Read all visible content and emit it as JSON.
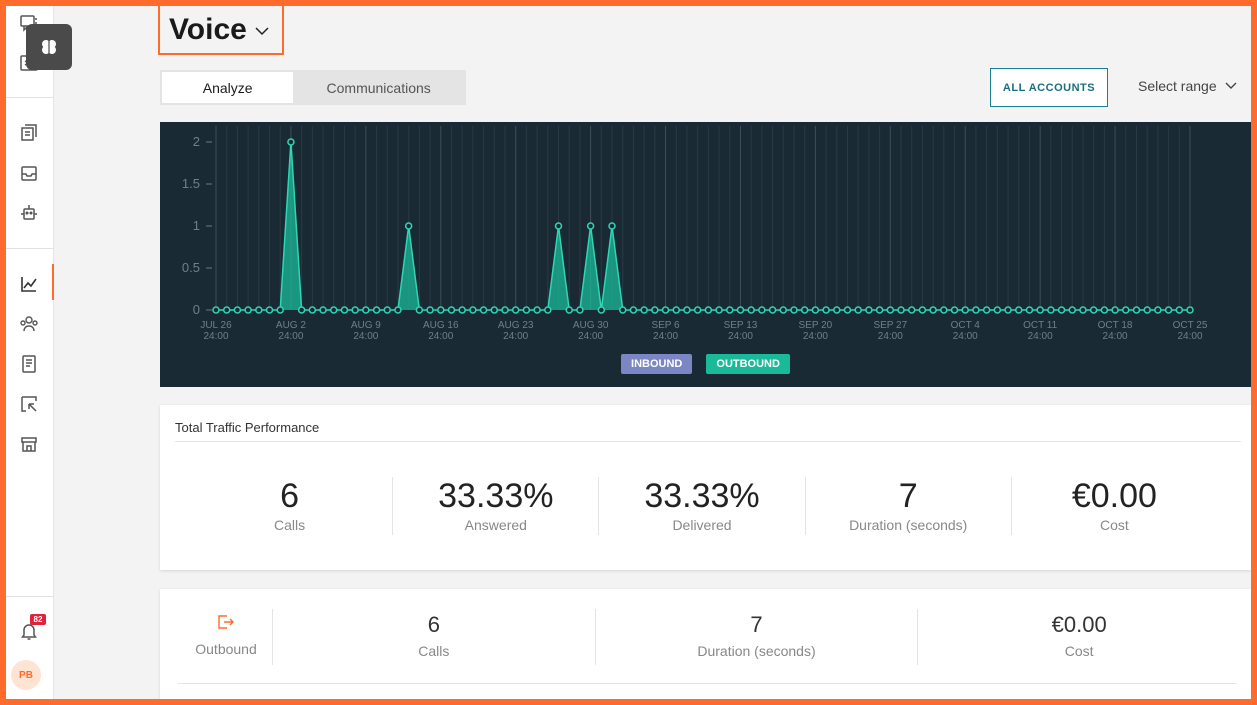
{
  "header": {
    "title": "Voice"
  },
  "tabs": [
    {
      "label": "Analyze"
    },
    {
      "label": "Communications"
    }
  ],
  "toolbar": {
    "all_accounts_label": "ALL ACCOUNTS",
    "range_label": "Select range"
  },
  "sidebar": {
    "notification_count": "82",
    "avatar_initials": "PB"
  },
  "chart_data": {
    "type": "area",
    "x_ticks": [
      [
        "JUL 26",
        "24:00"
      ],
      [
        "AUG 2",
        "24:00"
      ],
      [
        "AUG 9",
        "24:00"
      ],
      [
        "AUG 16",
        "24:00"
      ],
      [
        "AUG 23",
        "24:00"
      ],
      [
        "AUG 30",
        "24:00"
      ],
      [
        "SEP 6",
        "24:00"
      ],
      [
        "SEP 13",
        "24:00"
      ],
      [
        "SEP 20",
        "24:00"
      ],
      [
        "SEP 27",
        "24:00"
      ],
      [
        "OCT 4",
        "24:00"
      ],
      [
        "OCT 11",
        "24:00"
      ],
      [
        "OCT 18",
        "24:00"
      ],
      [
        "OCT 25",
        "24:00"
      ]
    ],
    "y_ticks": [
      "0",
      "0.5",
      "1",
      "1.5",
      "2"
    ],
    "ylim": [
      0,
      2
    ],
    "start_label": "JUL 26",
    "points_per_week": 7,
    "n_points": 92,
    "series": [
      {
        "name": "INBOUND",
        "color": "#7b86c4",
        "values": []
      },
      {
        "name": "OUTBOUND",
        "color": "#19b99a",
        "spikes": [
          {
            "index": 7,
            "value": 2
          },
          {
            "index": 18,
            "value": 1
          },
          {
            "index": 32,
            "value": 1
          },
          {
            "index": 35,
            "value": 1
          },
          {
            "index": 37,
            "value": 1
          }
        ]
      }
    ]
  },
  "total_traffic": {
    "title": "Total Traffic Performance",
    "kpis": [
      {
        "value": "6",
        "label": "Calls"
      },
      {
        "value": "33.33%",
        "label": "Answered"
      },
      {
        "value": "33.33%",
        "label": "Delivered"
      },
      {
        "value": "7",
        "label": "Duration (seconds)"
      },
      {
        "value": "€0.00",
        "label": "Cost"
      }
    ]
  },
  "outbound": {
    "label": "Outbound",
    "metrics": [
      {
        "value": "6",
        "label": "Calls"
      },
      {
        "value": "7",
        "label": "Duration (seconds)"
      },
      {
        "value": "€0.00",
        "label": "Cost"
      }
    ]
  },
  "colors": {
    "accent": "#ff6b2c",
    "chart_bg": "#1a2a35",
    "outbound": "#19b99a",
    "inbound": "#7b86c4"
  }
}
